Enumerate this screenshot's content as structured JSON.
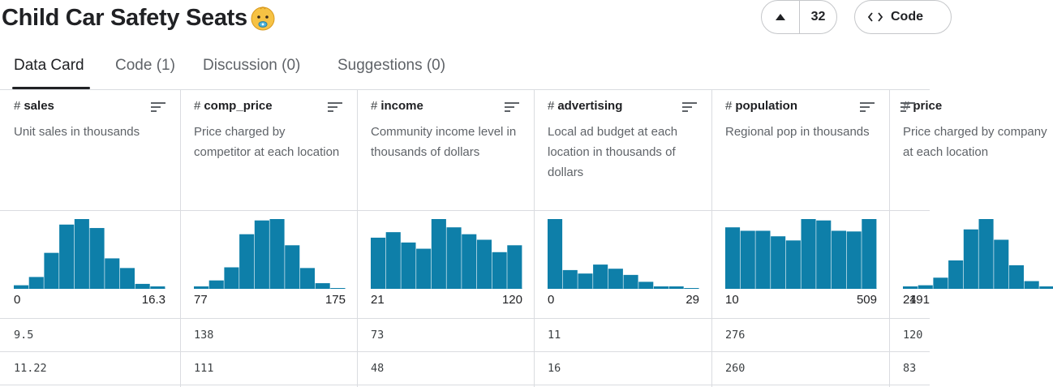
{
  "header": {
    "title": "Child Car Safety Seats",
    "vote_count": "32",
    "code_label": "Code"
  },
  "tabs": [
    {
      "label": "Data Card",
      "active": true
    },
    {
      "label": "Code (1)",
      "active": false
    },
    {
      "label": "Discussion (0)",
      "active": false
    },
    {
      "label": "Suggestions (0)",
      "active": false
    }
  ],
  "colors": {
    "bar": "#0e7fa9",
    "border": "#dadce0",
    "text": "#202124",
    "muted": "#5f6368"
  },
  "columns": [
    {
      "name": "sales",
      "description": "Unit sales in thousands",
      "min": "0",
      "max": "16.3",
      "histogram": [
        0.04,
        0.16,
        0.51,
        0.92,
        1.0,
        0.87,
        0.43,
        0.29,
        0.06,
        0.02
      ],
      "rows": [
        "9.5",
        "11.22"
      ]
    },
    {
      "name": "comp_price",
      "description": "Price charged by competitor at each location",
      "min": "77",
      "max": "175",
      "histogram": [
        0.02,
        0.11,
        0.3,
        0.78,
        0.98,
        1.0,
        0.62,
        0.29,
        0.07,
        0.0
      ],
      "rows": [
        "138",
        "111"
      ]
    },
    {
      "name": "income",
      "description": "Community income level in thousands of dollars",
      "min": "21",
      "max": "120",
      "histogram": [
        0.73,
        0.81,
        0.66,
        0.57,
        1.0,
        0.88,
        0.78,
        0.7,
        0.52,
        0.62
      ],
      "rows": [
        "73",
        "48"
      ]
    },
    {
      "name": "advertising",
      "description": "Local ad budget at each location in thousands of dollars",
      "min": "0",
      "max": "29",
      "histogram": [
        1.0,
        0.26,
        0.21,
        0.34,
        0.28,
        0.19,
        0.09,
        0.02,
        0.01,
        0.0
      ],
      "rows": [
        "11",
        "16"
      ]
    },
    {
      "name": "population",
      "description": "Regional pop in thousands",
      "min": "10",
      "max": "509",
      "histogram": [
        0.88,
        0.83,
        0.83,
        0.75,
        0.69,
        1.0,
        0.98,
        0.83,
        0.82,
        1.0
      ],
      "rows": [
        "276",
        "260"
      ]
    },
    {
      "name": "price",
      "description": "Price charged by company at each location",
      "min": "24",
      "max": "191",
      "histogram": [
        0.02,
        0.04,
        0.15,
        0.4,
        0.85,
        1.0,
        0.7,
        0.33,
        0.1,
        0.02
      ],
      "rows": [
        "120",
        "83"
      ]
    }
  ]
}
